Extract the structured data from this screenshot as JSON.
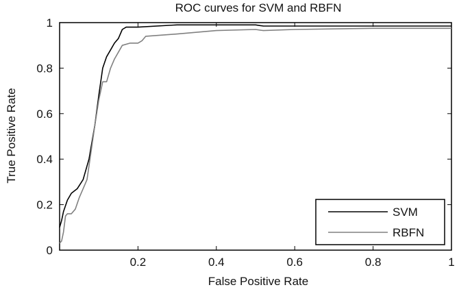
{
  "chart_data": {
    "type": "line",
    "title": "ROC curves for SVM and RBFN",
    "xlabel": "False Positive Rate",
    "ylabel": "True Positive Rate",
    "xlim": [
      0,
      1
    ],
    "ylim": [
      0,
      1
    ],
    "xticks": [
      0.2,
      0.4,
      0.6,
      0.8,
      1
    ],
    "xtick_labels": [
      "0.2",
      "0.4",
      "0.6",
      "0.8",
      "1"
    ],
    "yticks": [
      0,
      0.2,
      0.4,
      0.6,
      0.8,
      1
    ],
    "ytick_labels": [
      "0",
      "0.2",
      "0.4",
      "0.6",
      "0.8",
      "1"
    ],
    "grid": false,
    "legend_position": "bottom-right",
    "series": [
      {
        "name": "SVM",
        "color": "#000000",
        "x": [
          0,
          0.005,
          0.01,
          0.02,
          0.03,
          0.045,
          0.06,
          0.075,
          0.09,
          0.1,
          0.11,
          0.12,
          0.13,
          0.14,
          0.15,
          0.16,
          0.17,
          0.18,
          0.2,
          0.3,
          0.5,
          0.52,
          0.7,
          1
        ],
        "y": [
          0.1,
          0.13,
          0.17,
          0.22,
          0.25,
          0.27,
          0.31,
          0.4,
          0.55,
          0.68,
          0.8,
          0.85,
          0.88,
          0.91,
          0.93,
          0.97,
          0.98,
          0.98,
          0.98,
          0.99,
          0.99,
          0.985,
          0.985,
          0.985
        ]
      },
      {
        "name": "RBFN",
        "color": "#808080",
        "x": [
          0,
          0.005,
          0.01,
          0.015,
          0.02,
          0.03,
          0.04,
          0.05,
          0.06,
          0.07,
          0.08,
          0.09,
          0.1,
          0.11,
          0.12,
          0.13,
          0.14,
          0.15,
          0.16,
          0.18,
          0.2,
          0.21,
          0.22,
          0.3,
          0.4,
          0.5,
          0.52,
          0.6,
          0.8,
          1
        ],
        "y": [
          0.03,
          0.04,
          0.08,
          0.15,
          0.16,
          0.16,
          0.18,
          0.23,
          0.27,
          0.31,
          0.43,
          0.55,
          0.66,
          0.74,
          0.74,
          0.8,
          0.84,
          0.87,
          0.9,
          0.91,
          0.91,
          0.92,
          0.94,
          0.95,
          0.965,
          0.97,
          0.965,
          0.97,
          0.975,
          0.975
        ]
      }
    ]
  }
}
